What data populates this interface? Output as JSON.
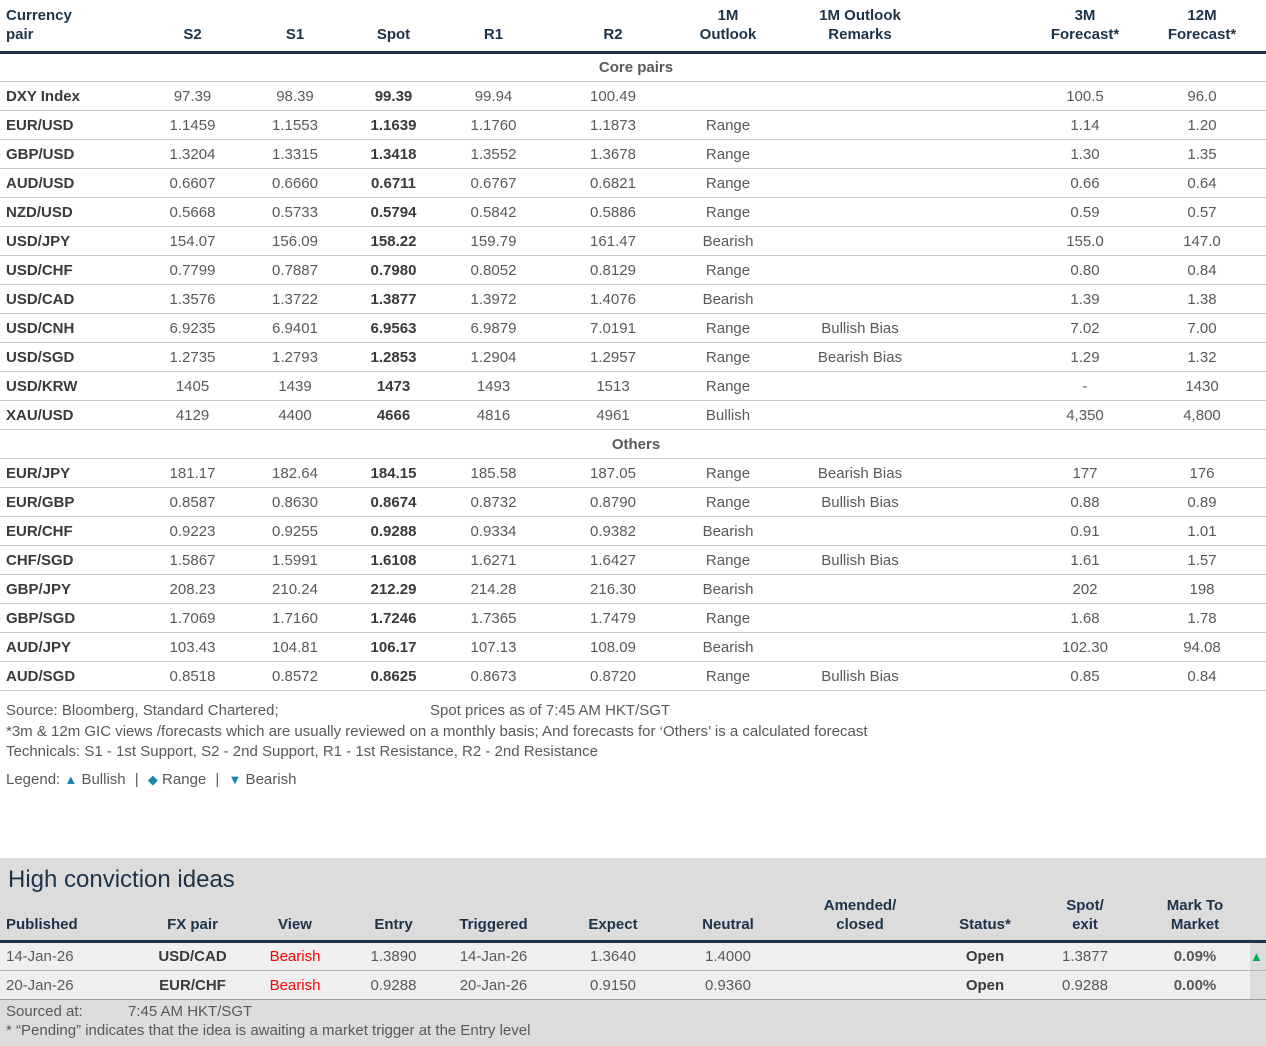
{
  "colors": {
    "navy": "#1d3349",
    "amber": "#F2A900",
    "red": "#FF0000",
    "green": "#00B050",
    "legend_blue": "#1886B0",
    "gray_text": "#595959"
  },
  "main_table": {
    "headers": [
      {
        "key": "pair",
        "lines": [
          "Currency",
          "pair"
        ]
      },
      {
        "key": "s2",
        "lines": [
          "S2"
        ]
      },
      {
        "key": "s1",
        "lines": [
          "S1"
        ]
      },
      {
        "key": "spot",
        "lines": [
          "Spot"
        ]
      },
      {
        "key": "r1",
        "lines": [
          "R1"
        ]
      },
      {
        "key": "r2",
        "lines": [
          "R2"
        ]
      },
      {
        "key": "outlook",
        "lines": [
          "1M",
          "Outlook"
        ]
      },
      {
        "key": "remarks",
        "lines": [
          "1M Outlook",
          "Remarks"
        ]
      },
      {
        "key": "f3m",
        "lines": [
          "3M",
          "Forecast*"
        ]
      },
      {
        "key": "f12m",
        "lines": [
          "12M",
          "Forecast*"
        ]
      }
    ],
    "sections": [
      {
        "label": "Core pairs",
        "rows": [
          {
            "pair": "DXY Index",
            "s2": "97.39",
            "s1": "98.39",
            "spot": "99.39",
            "r1": "99.94",
            "r2": "100.49",
            "outlook": "",
            "remarks": "",
            "f3m": "100.5",
            "f12m": "96.0"
          },
          {
            "pair": "EUR/USD",
            "s2": "1.1459",
            "s1": "1.1553",
            "spot": "1.1639",
            "r1": "1.1760",
            "r2": "1.1873",
            "outlook": "Range",
            "remarks": "",
            "f3m": "1.14",
            "f12m": "1.20"
          },
          {
            "pair": "GBP/USD",
            "s2": "1.3204",
            "s1": "1.3315",
            "spot": "1.3418",
            "r1": "1.3552",
            "r2": "1.3678",
            "outlook": "Range",
            "remarks": "",
            "f3m": "1.30",
            "f12m": "1.35"
          },
          {
            "pair": "AUD/USD",
            "s2": "0.6607",
            "s1": "0.6660",
            "spot": "0.6711",
            "r1": "0.6767",
            "r2": "0.6821",
            "outlook": "Range",
            "remarks": "",
            "f3m": "0.66",
            "f12m": "0.64"
          },
          {
            "pair": "NZD/USD",
            "s2": "0.5668",
            "s1": "0.5733",
            "spot": "0.5794",
            "r1": "0.5842",
            "r2": "0.5886",
            "outlook": "Range",
            "remarks": "",
            "f3m": "0.59",
            "f12m": "0.57"
          },
          {
            "pair": "USD/JPY",
            "s2": "154.07",
            "s1": "156.09",
            "spot": "158.22",
            "r1": "159.79",
            "r2": "161.47",
            "outlook": "Bearish",
            "remarks": "",
            "f3m": "155.0",
            "f12m": "147.0"
          },
          {
            "pair": "USD/CHF",
            "s2": "0.7799",
            "s1": "0.7887",
            "spot": "0.7980",
            "r1": "0.8052",
            "r2": "0.8129",
            "outlook": "Range",
            "remarks": "",
            "f3m": "0.80",
            "f12m": "0.84"
          },
          {
            "pair": "USD/CAD",
            "s2": "1.3576",
            "s1": "1.3722",
            "spot": "1.3877",
            "r1": "1.3972",
            "r2": "1.4076",
            "outlook": "Bearish",
            "remarks": "",
            "f3m": "1.39",
            "f12m": "1.38"
          },
          {
            "pair": "USD/CNH",
            "s2": "6.9235",
            "s1": "6.9401",
            "spot": "6.9563",
            "r1": "6.9879",
            "r2": "7.0191",
            "outlook": "Range",
            "remarks": "Bullish Bias",
            "f3m": "7.02",
            "f12m": "7.00"
          },
          {
            "pair": "USD/SGD",
            "s2": "1.2735",
            "s1": "1.2793",
            "spot": "1.2853",
            "r1": "1.2904",
            "r2": "1.2957",
            "outlook": "Range",
            "remarks": "Bearish Bias",
            "f3m": "1.29",
            "f12m": "1.32"
          },
          {
            "pair": "USD/KRW",
            "s2": "1405",
            "s1": "1439",
            "spot": "1473",
            "r1": "1493",
            "r2": "1513",
            "outlook": "Range",
            "remarks": "",
            "f3m": "-",
            "f12m": "1430"
          },
          {
            "pair": "XAU/USD",
            "s2": "4129",
            "s1": "4400",
            "spot": "4666",
            "r1": "4816",
            "r2": "4961",
            "outlook": "Bullish",
            "remarks": "",
            "f3m": "4,350",
            "f12m": "4,800"
          }
        ]
      },
      {
        "label": "Others",
        "rows": [
          {
            "pair": "EUR/JPY",
            "s2": "181.17",
            "s1": "182.64",
            "spot": "184.15",
            "r1": "185.58",
            "r2": "187.05",
            "outlook": "Range",
            "remarks": "Bearish Bias",
            "f3m": "177",
            "f12m": "176"
          },
          {
            "pair": "EUR/GBP",
            "s2": "0.8587",
            "s1": "0.8630",
            "spot": "0.8674",
            "r1": "0.8732",
            "r2": "0.8790",
            "outlook": "Range",
            "remarks": "Bullish Bias",
            "f3m": "0.88",
            "f12m": "0.89"
          },
          {
            "pair": "EUR/CHF",
            "s2": "0.9223",
            "s1": "0.9255",
            "spot": "0.9288",
            "r1": "0.9334",
            "r2": "0.9382",
            "outlook": "Bearish",
            "remarks": "",
            "f3m": "0.91",
            "f12m": "1.01"
          },
          {
            "pair": "CHF/SGD",
            "s2": "1.5867",
            "s1": "1.5991",
            "spot": "1.6108",
            "r1": "1.6271",
            "r2": "1.6427",
            "outlook": "Range",
            "remarks": "Bullish Bias",
            "f3m": "1.61",
            "f12m": "1.57"
          },
          {
            "pair": "GBP/JPY",
            "s2": "208.23",
            "s1": "210.24",
            "spot": "212.29",
            "r1": "214.28",
            "r2": "216.30",
            "outlook": "Bearish",
            "remarks": "",
            "f3m": "202",
            "f12m": "198"
          },
          {
            "pair": "GBP/SGD",
            "s2": "1.7069",
            "s1": "1.7160",
            "spot": "1.7246",
            "r1": "1.7365",
            "r2": "1.7479",
            "outlook": "Range",
            "remarks": "",
            "f3m": "1.68",
            "f12m": "1.78"
          },
          {
            "pair": "AUD/JPY",
            "s2": "103.43",
            "s1": "104.81",
            "spot": "106.17",
            "r1": "107.13",
            "r2": "108.09",
            "outlook": "Bearish",
            "remarks": "",
            "f3m": "102.30",
            "f12m": "94.08"
          },
          {
            "pair": "AUD/SGD",
            "s2": "0.8518",
            "s1": "0.8572",
            "spot": "0.8625",
            "r1": "0.8673",
            "r2": "0.8720",
            "outlook": "Range",
            "remarks": "Bullish Bias",
            "f3m": "0.85",
            "f12m": "0.84"
          }
        ]
      }
    ]
  },
  "footnotes": {
    "source": "Source: Bloomberg, Standard Chartered;",
    "spot_asof": "Spot prices as of  7:45 AM HKT/SGT",
    "forecast_note": "*3m & 12m GIC views /forecasts which are usually reviewed on a monthly basis; And forecasts for ‘Others’ is a calculated forecast",
    "technicals": "Technicals: S1 - 1st Support, S2 - 2nd Support, R1 - 1st Resistance, R2 - 2nd Resistance",
    "legend_label": "Legend:",
    "legend_items": [
      {
        "icon": "▲",
        "label": "Bullish"
      },
      {
        "icon": "◆",
        "label": "Range"
      },
      {
        "icon": "▼",
        "label": "Bearish"
      }
    ],
    "legend_separator": "|"
  },
  "high_conviction": {
    "title": "High conviction ideas",
    "headers": [
      {
        "key": "published",
        "lines": [
          "Published"
        ]
      },
      {
        "key": "fx",
        "lines": [
          "FX pair"
        ]
      },
      {
        "key": "view",
        "lines": [
          "View"
        ]
      },
      {
        "key": "entry",
        "lines": [
          "Entry"
        ]
      },
      {
        "key": "triggered",
        "lines": [
          "Triggered"
        ]
      },
      {
        "key": "expect",
        "lines": [
          "Expect"
        ]
      },
      {
        "key": "neutral",
        "lines": [
          "Neutral"
        ]
      },
      {
        "key": "amended",
        "lines": [
          "Amended/",
          "closed"
        ]
      },
      {
        "key": "status",
        "lines": [
          "Status*"
        ]
      },
      {
        "key": "spotexit",
        "lines": [
          "Spot/",
          "exit"
        ]
      },
      {
        "key": "mtm",
        "lines": [
          "Mark To",
          "Market"
        ]
      }
    ],
    "rows": [
      {
        "published": "14-Jan-26",
        "fx": "USD/CAD",
        "view": "Bearish",
        "entry": "1.3890",
        "triggered": "14-Jan-26",
        "expect": "1.3640",
        "neutral": "1.4000",
        "amended": "",
        "status": "Open",
        "spotexit": "1.3877",
        "mtm": "0.09%",
        "mtm_arrow": "▲"
      },
      {
        "published": "20-Jan-26",
        "fx": "EUR/CHF",
        "view": "Bearish",
        "entry": "0.9288",
        "triggered": "20-Jan-26",
        "expect": "0.9150",
        "neutral": "0.9360",
        "amended": "",
        "status": "Open",
        "spotexit": "0.9288",
        "mtm": "0.00%",
        "mtm_arrow": ""
      }
    ],
    "sourced_label": "Sourced at:",
    "sourced_value": "7:45 AM HKT/SGT",
    "pending_note": "* “Pending” indicates that the idea is awaiting a market trigger at the Entry level"
  }
}
